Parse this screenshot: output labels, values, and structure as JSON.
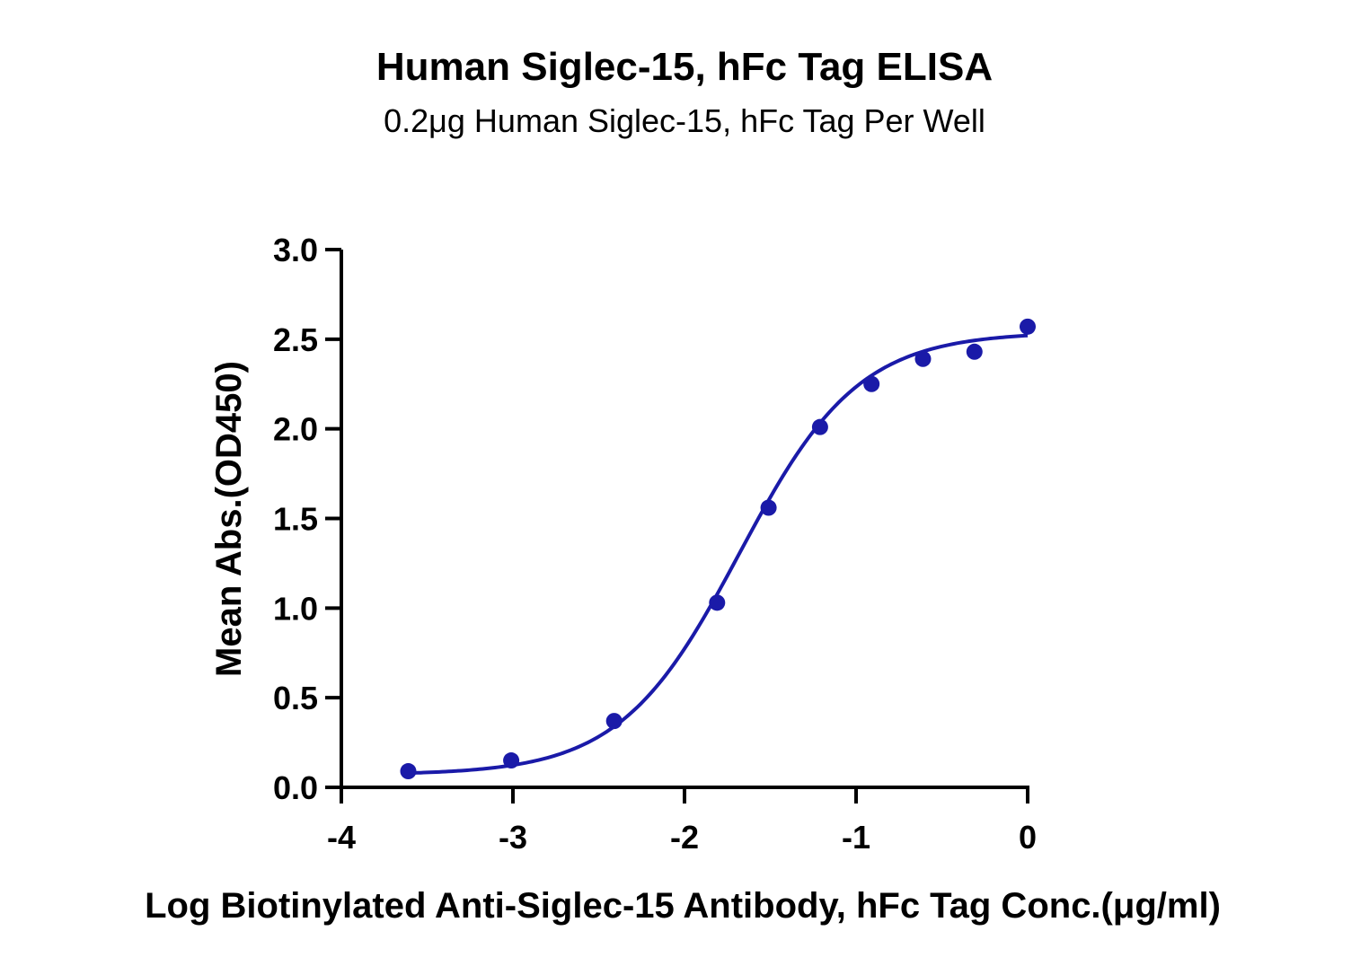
{
  "chart_data": {
    "type": "scatter",
    "title": "Human Siglec-15, hFc Tag ELISA",
    "subtitle": "0.2μg Human Siglec-15, hFc Tag Per Well",
    "xlabel": "Log Biotinylated Anti-Siglec-15 Antibody, hFc Tag Conc.(μg/ml)",
    "ylabel": "Mean Abs.(OD450)",
    "xlim": [
      -4,
      0
    ],
    "ylim": [
      0,
      3
    ],
    "x_ticks": [
      "-4",
      "-3",
      "-2",
      "-1",
      "0"
    ],
    "y_ticks": [
      "0.0",
      "0.5",
      "1.0",
      "1.5",
      "2.0",
      "2.5",
      "3.0"
    ],
    "grid": false,
    "series": [
      {
        "color": "#1a1aa8",
        "x": [
          -3.61,
          -3.01,
          -2.41,
          -1.81,
          -1.51,
          -1.21,
          -0.91,
          -0.61,
          -0.31,
          0.0
        ],
        "y": [
          0.09,
          0.15,
          0.37,
          1.03,
          1.56,
          2.01,
          2.25,
          2.39,
          2.43,
          2.57
        ],
        "fit": {
          "model": "4PL",
          "bottom": 0.07,
          "top": 2.54,
          "log_ec50": -1.68,
          "hill": 1.25
        }
      }
    ]
  }
}
